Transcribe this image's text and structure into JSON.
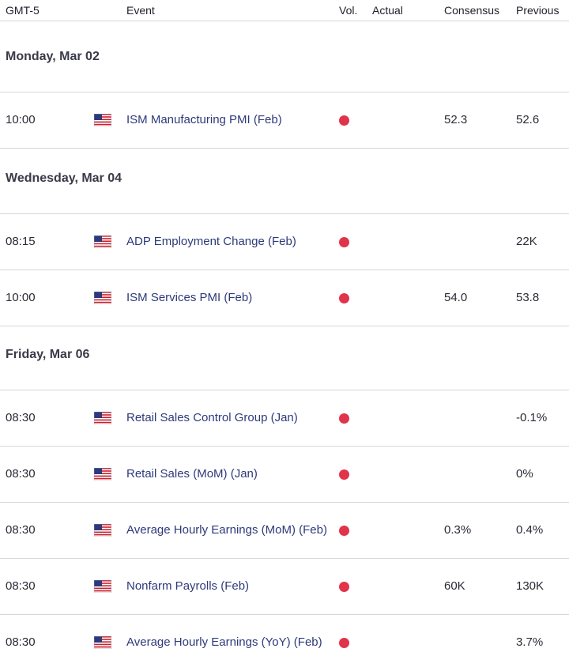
{
  "header": {
    "timezone": "GMT-5",
    "event": "Event",
    "vol": "Vol.",
    "actual": "Actual",
    "consensus": "Consensus",
    "previous": "Previous"
  },
  "days": [
    {
      "label": "Monday, Mar 02",
      "events": [
        {
          "time": "10:00",
          "name": "ISM Manufacturing PMI (Feb)",
          "actual": "",
          "consensus": "52.3",
          "previous": "52.6"
        }
      ]
    },
    {
      "label": "Wednesday, Mar 04",
      "events": [
        {
          "time": "08:15",
          "name": "ADP Employment Change (Feb)",
          "actual": "",
          "consensus": "",
          "previous": "22K"
        },
        {
          "time": "10:00",
          "name": "ISM Services PMI (Feb)",
          "actual": "",
          "consensus": "54.0",
          "previous": "53.8"
        }
      ]
    },
    {
      "label": "Friday, Mar 06",
      "events": [
        {
          "time": "08:30",
          "name": "Retail Sales Control Group (Jan)",
          "actual": "",
          "consensus": "",
          "previous": "-0.1%"
        },
        {
          "time": "08:30",
          "name": "Retail Sales (MoM) (Jan)",
          "actual": "",
          "consensus": "",
          "previous": "0%"
        },
        {
          "time": "08:30",
          "name": "Average Hourly Earnings (MoM) (Feb)",
          "actual": "",
          "consensus": "0.3%",
          "previous": "0.4%"
        },
        {
          "time": "08:30",
          "name": "Nonfarm Payrolls (Feb)",
          "actual": "",
          "consensus": "60K",
          "previous": "130K"
        },
        {
          "time": "08:30",
          "name": "Average Hourly Earnings (YoY) (Feb)",
          "actual": "",
          "consensus": "",
          "previous": "3.7%"
        }
      ]
    }
  ],
  "icons": {
    "flag": "us-flag-icon",
    "volatility": "high-volatility-dot-icon"
  },
  "colors": {
    "volatility_high": "#e0344b",
    "event_text": "#2d3a7a"
  }
}
